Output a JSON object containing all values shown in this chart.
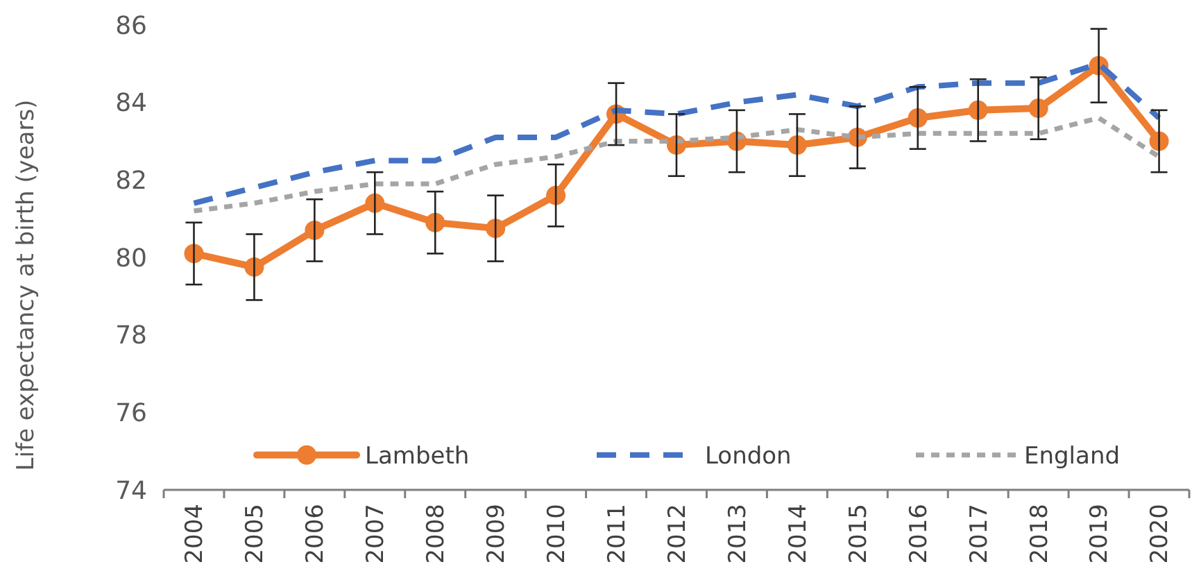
{
  "chart_data": {
    "type": "line",
    "ylabel": "Life expectancy at birth (years)",
    "categories": [
      "2004",
      "2005",
      "2006",
      "2007",
      "2008",
      "2009",
      "2010",
      "2011",
      "2012",
      "2013",
      "2014",
      "2015",
      "2016",
      "2017",
      "2018",
      "2019",
      "2020"
    ],
    "series": [
      {
        "name": "Lambeth",
        "color": "#ed7d31",
        "values": [
          80.1,
          79.75,
          80.7,
          81.4,
          80.9,
          80.75,
          81.6,
          83.7,
          82.9,
          83.0,
          82.9,
          83.1,
          83.6,
          83.8,
          83.85,
          84.95,
          83.0
        ],
        "errors": [
          0.8,
          0.85,
          0.8,
          0.8,
          0.8,
          0.85,
          0.8,
          0.8,
          0.8,
          0.8,
          0.8,
          0.8,
          0.8,
          0.8,
          0.8,
          0.95,
          0.8
        ],
        "marker": "circle",
        "line_style": "solid"
      },
      {
        "name": "London",
        "color": "#4472c4",
        "values": [
          81.4,
          81.8,
          82.2,
          82.5,
          82.5,
          83.1,
          83.1,
          83.8,
          83.7,
          84.0,
          84.2,
          83.9,
          84.4,
          84.5,
          84.5,
          85.0,
          83.6
        ],
        "marker": "none",
        "line_style": "dashed"
      },
      {
        "name": "England",
        "color": "#a5a5a5",
        "values": [
          81.2,
          81.4,
          81.7,
          81.9,
          81.9,
          82.4,
          82.6,
          83.0,
          83.0,
          83.1,
          83.3,
          83.1,
          83.2,
          83.2,
          83.2,
          83.6,
          82.6
        ],
        "marker": "none",
        "line_style": "dotted"
      }
    ],
    "ylim": [
      74,
      86
    ],
    "yticks": [
      74,
      76,
      78,
      80,
      82,
      84,
      86
    ],
    "grid": false,
    "legend": "bottom"
  }
}
